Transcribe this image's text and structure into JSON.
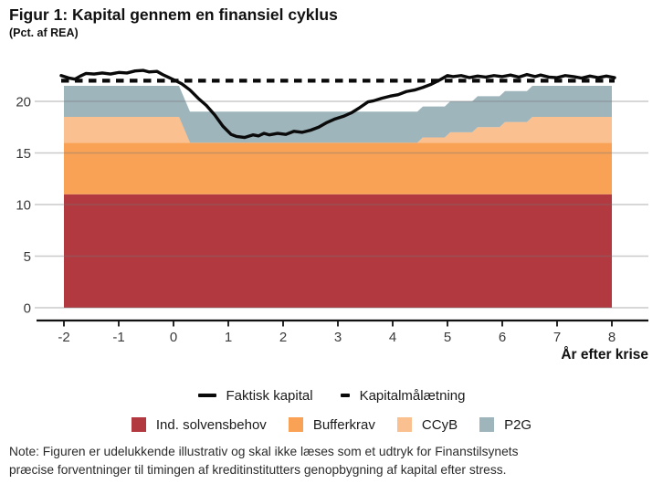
{
  "header": {
    "title": "Figur 1: Kapital gennem en finansiel cyklus",
    "subtitle": "(Pct. af REA)"
  },
  "axis": {
    "x_label": "År efter krise",
    "x_ticks": [
      -2,
      -1,
      0,
      1,
      2,
      3,
      4,
      5,
      6,
      7,
      8
    ],
    "y_ticks": [
      0,
      5,
      10,
      15,
      20
    ]
  },
  "legend_lines": [
    {
      "label": "Faktisk kapital",
      "style": "solid"
    },
    {
      "label": "Kapitalmålætning",
      "style": "dashed"
    }
  ],
  "legend_fills": [
    {
      "label": "Ind. solvensbehov",
      "color": "#B23940"
    },
    {
      "label": "Bufferkrav",
      "color": "#F9A255"
    },
    {
      "label": "CCyB",
      "color": "#FBC08F"
    },
    {
      "label": "P2G",
      "color": "#9FB5BC"
    }
  ],
  "note": {
    "line1": "Note: Figuren er udelukkende illustrativ og skal ikke læses som et udtryk for Finanstilsynets",
    "line2": "præcise forventninger til timingen af kreditinstitutters genopbygning af kapital efter stress."
  },
  "chart_data": {
    "type": "area",
    "title": "Figur 1: Kapital gennem en finansiel cyklus",
    "ylabel": "Pct. af REA",
    "xlabel": "År efter krise",
    "xlim": [
      -2,
      8
    ],
    "ylim": [
      0,
      23.5
    ],
    "grid": true,
    "series": [
      {
        "name": "Ind. solvensbehov",
        "role": "stacked-area",
        "color": "#B23940",
        "constant": 11
      },
      {
        "name": "Bufferkrav",
        "role": "stacked-area",
        "color": "#F9A255",
        "constant": 5
      },
      {
        "name": "CCyB",
        "role": "stacked-area",
        "color": "#FBC08F",
        "t": [
          -2,
          0.1,
          0.3,
          4.45,
          4.55,
          4.95,
          5.05,
          5.45,
          5.55,
          5.95,
          6.05,
          6.45,
          6.55,
          8
        ],
        "values": [
          2.5,
          2.5,
          0,
          0,
          0.5,
          0.5,
          1.0,
          1.0,
          1.5,
          1.5,
          2.0,
          2.0,
          2.5,
          2.5
        ]
      },
      {
        "name": "P2G",
        "role": "stacked-area",
        "color": "#9FB5BC",
        "constant": 3
      },
      {
        "name": "Faktisk kapital",
        "role": "line",
        "style": "solid",
        "color": "#0a0a0a",
        "t": [
          -2.05,
          -1.9,
          -1.8,
          -1.7,
          -1.6,
          -1.45,
          -1.3,
          -1.15,
          -1.0,
          -0.85,
          -0.7,
          -0.55,
          -0.45,
          -0.3,
          -0.2,
          -0.1,
          0.0,
          0.15,
          0.3,
          0.45,
          0.6,
          0.75,
          0.9,
          1.05,
          1.15,
          1.3,
          1.45,
          1.55,
          1.65,
          1.75,
          1.9,
          2.05,
          2.2,
          2.35,
          2.5,
          2.65,
          2.8,
          2.95,
          3.1,
          3.25,
          3.4,
          3.55,
          3.65,
          3.8,
          3.95,
          4.1,
          4.25,
          4.4,
          4.55,
          4.7,
          4.85,
          5.0,
          5.1,
          5.25,
          5.4,
          5.55,
          5.7,
          5.85,
          6.0,
          6.15,
          6.3,
          6.45,
          6.6,
          6.7,
          6.85,
          7.0,
          7.15,
          7.3,
          7.45,
          7.6,
          7.75,
          7.9,
          8.05
        ],
        "values": [
          22.5,
          22.25,
          22.15,
          22.45,
          22.7,
          22.65,
          22.75,
          22.65,
          22.8,
          22.75,
          22.95,
          23.0,
          22.85,
          22.9,
          22.6,
          22.35,
          22.1,
          21.7,
          21.1,
          20.3,
          19.6,
          18.7,
          17.6,
          16.8,
          16.6,
          16.5,
          16.75,
          16.65,
          16.9,
          16.75,
          16.9,
          16.8,
          17.1,
          17.0,
          17.2,
          17.5,
          17.95,
          18.3,
          18.55,
          18.9,
          19.4,
          19.95,
          20.05,
          20.3,
          20.5,
          20.65,
          20.95,
          21.1,
          21.35,
          21.65,
          22.05,
          22.5,
          22.4,
          22.5,
          22.3,
          22.45,
          22.35,
          22.5,
          22.4,
          22.55,
          22.35,
          22.6,
          22.4,
          22.55,
          22.35,
          22.3,
          22.5,
          22.4,
          22.25,
          22.45,
          22.3,
          22.45,
          22.3
        ]
      },
      {
        "name": "Kapitalmålætning",
        "role": "line",
        "style": "dashed",
        "color": "#0a0a0a",
        "t": [
          -2.05,
          8.05
        ],
        "values": [
          22,
          22
        ]
      }
    ]
  }
}
